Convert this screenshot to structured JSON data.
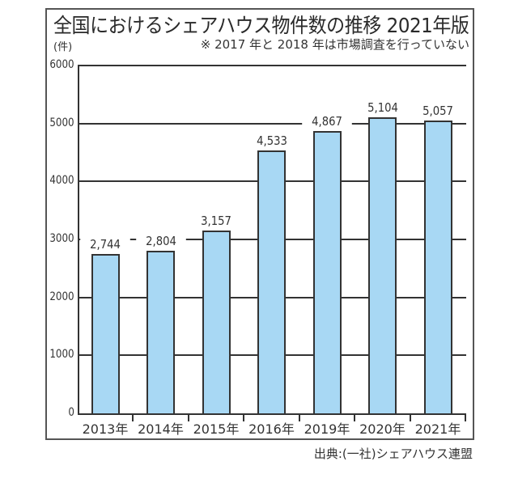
{
  "chart_data": {
    "type": "bar",
    "title": "全国におけるシェアハウス物件数の推移 2021年版",
    "subtitle": "※ 2017 年と 2018 年は市場調査を行っていない",
    "ylabel": "(件)",
    "xlabel": "",
    "categories": [
      "2013年",
      "2014年",
      "2015年",
      "2016年",
      "2019年",
      "2020年",
      "2021年"
    ],
    "values": [
      2744,
      2804,
      3157,
      4533,
      4867,
      5104,
      5057
    ],
    "value_labels": [
      "2,744",
      "2,804",
      "3,157",
      "4,533",
      "4,867",
      "5,104",
      "5,057"
    ],
    "ylim": [
      0,
      6000
    ],
    "yticks": [
      0,
      1000,
      2000,
      3000,
      4000,
      5000,
      6000
    ],
    "grid": true,
    "legend": "none",
    "bar_color": "#a8d8f4",
    "source": "出典:(一社)シェアハウス連盟"
  },
  "header": {
    "title": "全国におけるシェアハウス物件数の推移  2021年版",
    "unit": "(件)",
    "note": "※ 2017 年と 2018 年は市場調査を行っていない"
  },
  "footer": {
    "source": "出典:(一社)シェアハウス連盟"
  }
}
